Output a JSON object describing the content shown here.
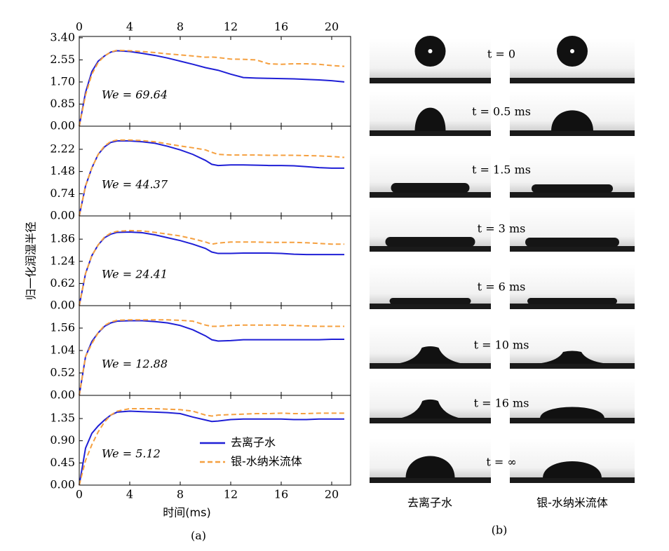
{
  "chart_data": [
    {
      "type": "line",
      "annotation": "We = 69.64",
      "xlim": [
        0,
        21.5
      ],
      "xticks": [
        0,
        4,
        8,
        12,
        16,
        20
      ],
      "ylim": [
        0,
        3.45
      ],
      "yticks": [
        {
          "value": 0,
          "label": "0.00"
        },
        0.85,
        {
          "value": 1.7,
          "label": "1.70"
        },
        2.55,
        {
          "value": 3.4,
          "label": "3.40"
        }
      ],
      "x": [
        0,
        0.5,
        1,
        1.5,
        2,
        2.5,
        3,
        4,
        5,
        6,
        7,
        8,
        9,
        10,
        10.5,
        11,
        12,
        13,
        14,
        15,
        16,
        17,
        18,
        19,
        20,
        21
      ],
      "series": [
        {
          "color": "#1f1fd6",
          "values": [
            0,
            1.3,
            2.1,
            2.5,
            2.7,
            2.85,
            2.9,
            2.87,
            2.8,
            2.72,
            2.62,
            2.5,
            2.38,
            2.25,
            2.2,
            2.15,
            2.0,
            1.87,
            1.85,
            1.84,
            1.83,
            1.82,
            1.8,
            1.78,
            1.75,
            1.7
          ]
        },
        {
          "color": "#f5a040",
          "values": [
            0,
            1.2,
            2.0,
            2.45,
            2.7,
            2.85,
            2.92,
            2.9,
            2.87,
            2.83,
            2.78,
            2.74,
            2.7,
            2.65,
            2.66,
            2.64,
            2.58,
            2.57,
            2.55,
            2.4,
            2.38,
            2.4,
            2.4,
            2.38,
            2.33,
            2.3
          ]
        }
      ]
    },
    {
      "type": "line",
      "annotation": "We = 44.37",
      "xlim": [
        0,
        21.5
      ],
      "xticks": [
        0,
        4,
        8,
        12,
        16,
        20
      ],
      "ylim": [
        0,
        2.99
      ],
      "yticks": [
        {
          "value": 0,
          "label": "0.00"
        },
        0.74,
        1.48,
        2.22
      ],
      "x": [
        0,
        0.5,
        1,
        1.5,
        2,
        2.5,
        3,
        4,
        5,
        6,
        7,
        8,
        9,
        10,
        10.5,
        11,
        12,
        13,
        14,
        15,
        16,
        17,
        18,
        19,
        20,
        21
      ],
      "series": [
        {
          "color": "#1f1fd6",
          "values": [
            0,
            1.0,
            1.6,
            2.05,
            2.3,
            2.45,
            2.5,
            2.5,
            2.47,
            2.42,
            2.32,
            2.2,
            2.05,
            1.85,
            1.72,
            1.68,
            1.7,
            1.7,
            1.69,
            1.68,
            1.68,
            1.67,
            1.64,
            1.61,
            1.59,
            1.59
          ]
        },
        {
          "color": "#f5a040",
          "values": [
            0,
            1.0,
            1.6,
            2.05,
            2.33,
            2.48,
            2.53,
            2.53,
            2.51,
            2.47,
            2.4,
            2.33,
            2.27,
            2.2,
            2.12,
            2.05,
            2.03,
            2.03,
            2.03,
            2.02,
            2.02,
            2.02,
            2.01,
            2.0,
            1.98,
            1.95
          ]
        }
      ]
    },
    {
      "type": "line",
      "annotation": "We = 24.41",
      "y_label": "归一化润湿半径",
      "xlim": [
        0,
        21.5
      ],
      "xticks": [
        0,
        4,
        8,
        12,
        16,
        20
      ],
      "ylim": [
        0,
        2.51
      ],
      "yticks": [
        {
          "value": 0,
          "label": "0.00"
        },
        0.62,
        1.24,
        1.86
      ],
      "x": [
        0,
        0.5,
        1,
        1.5,
        2,
        2.5,
        3,
        4,
        5,
        6,
        7,
        8,
        9,
        10,
        10.5,
        11,
        12,
        13,
        14,
        15,
        16,
        17,
        18,
        19,
        20,
        21
      ],
      "series": [
        {
          "color": "#1f1fd6",
          "values": [
            0,
            0.9,
            1.4,
            1.7,
            1.9,
            2.0,
            2.05,
            2.06,
            2.04,
            1.98,
            1.9,
            1.82,
            1.72,
            1.6,
            1.5,
            1.46,
            1.46,
            1.47,
            1.47,
            1.47,
            1.46,
            1.44,
            1.43,
            1.43,
            1.43,
            1.43
          ]
        },
        {
          "color": "#f5a040",
          "values": [
            0,
            0.9,
            1.4,
            1.7,
            1.92,
            2.03,
            2.08,
            2.1,
            2.09,
            2.05,
            2.0,
            1.95,
            1.87,
            1.78,
            1.72,
            1.75,
            1.78,
            1.78,
            1.78,
            1.77,
            1.77,
            1.77,
            1.76,
            1.74,
            1.72,
            1.72
          ]
        }
      ]
    },
    {
      "type": "line",
      "annotation": "We = 12.88",
      "xlim": [
        0,
        21.5
      ],
      "xticks": [
        0,
        4,
        8,
        12,
        16,
        20
      ],
      "ylim": [
        0,
        2.08
      ],
      "yticks": [
        {
          "value": 0,
          "label": "0.00"
        },
        0.52,
        1.04,
        1.56
      ],
      "x": [
        0,
        0.5,
        1,
        1.5,
        2,
        2.5,
        3,
        4,
        5,
        6,
        7,
        8,
        9,
        10,
        10.5,
        11,
        12,
        13,
        14,
        15,
        16,
        17,
        18,
        19,
        20,
        21
      ],
      "series": [
        {
          "color": "#1f1fd6",
          "values": [
            0,
            0.9,
            1.25,
            1.45,
            1.6,
            1.68,
            1.72,
            1.73,
            1.73,
            1.71,
            1.68,
            1.62,
            1.52,
            1.38,
            1.29,
            1.26,
            1.27,
            1.29,
            1.29,
            1.29,
            1.29,
            1.29,
            1.29,
            1.29,
            1.3,
            1.3
          ]
        },
        {
          "color": "#f5a040",
          "values": [
            0,
            0.9,
            1.2,
            1.45,
            1.62,
            1.7,
            1.74,
            1.75,
            1.75,
            1.75,
            1.75,
            1.74,
            1.72,
            1.63,
            1.6,
            1.6,
            1.62,
            1.63,
            1.63,
            1.63,
            1.63,
            1.62,
            1.61,
            1.6,
            1.6,
            1.6
          ]
        }
      ]
    },
    {
      "type": "line",
      "annotation": "We = 5.12",
      "x_label": "时间(ms)",
      "caption": "(a)",
      "legend": "lower right",
      "xlim": [
        0,
        21.5
      ],
      "xticks": [
        0,
        4,
        8,
        12,
        16,
        20
      ],
      "ylim": [
        0,
        1.82
      ],
      "yticks": [
        {
          "value": 0,
          "label": "0.00"
        },
        0.45,
        {
          "value": 0.9,
          "label": "0.90"
        },
        1.35
      ],
      "x": [
        0,
        0.5,
        1,
        1.5,
        2,
        2.5,
        3,
        4,
        5,
        6,
        7,
        8,
        9,
        10,
        10.5,
        11,
        12,
        13,
        14,
        15,
        16,
        17,
        18,
        19,
        20,
        21
      ],
      "series": [
        {
          "name": "去离子水",
          "color": "#1f1fd6",
          "values": [
            0,
            0.75,
            1.05,
            1.2,
            1.32,
            1.42,
            1.48,
            1.5,
            1.49,
            1.48,
            1.47,
            1.45,
            1.38,
            1.32,
            1.29,
            1.3,
            1.33,
            1.34,
            1.34,
            1.34,
            1.34,
            1.33,
            1.33,
            1.34,
            1.34,
            1.34
          ]
        },
        {
          "name": "银-水纳米流体",
          "color": "#f5a040",
          "values": [
            0,
            0.5,
            0.82,
            1.08,
            1.28,
            1.42,
            1.5,
            1.55,
            1.55,
            1.55,
            1.54,
            1.53,
            1.5,
            1.42,
            1.4,
            1.42,
            1.43,
            1.44,
            1.45,
            1.45,
            1.46,
            1.45,
            1.45,
            1.46,
            1.46,
            1.46
          ]
        }
      ]
    }
  ],
  "images_panel": {
    "time_labels": [
      "t = 0",
      "t = 0.5 ms",
      "t = 1.5 ms",
      "t = 3 ms",
      "t = 6 ms",
      "t = 10 ms",
      "t = 16 ms",
      "t = ∞"
    ],
    "column_labels": [
      "去离子水",
      "银-水纳米流体"
    ],
    "caption": "(b)"
  }
}
